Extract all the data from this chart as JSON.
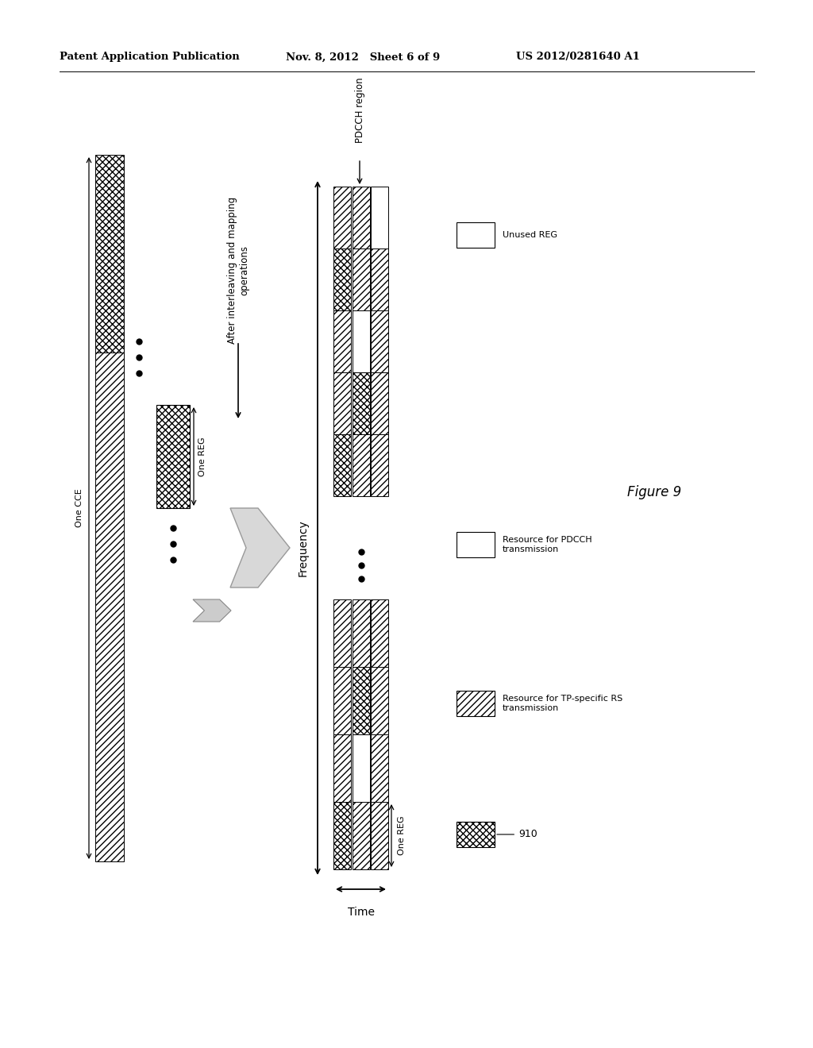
{
  "bg_color": "#ffffff",
  "header_left": "Patent Application Publication",
  "header_mid": "Nov. 8, 2012   Sheet 6 of 9",
  "header_right": "US 2012/0281640 A1",
  "fig_label": "Figure 9",
  "label_one_cce": "One CCE",
  "label_one_reg_left": "One REG",
  "label_one_reg_right": "One REG",
  "label_after": "After interleaving and mapping\noperations",
  "label_frequency": "Frequency",
  "label_time": "Time",
  "label_pdcch_region": "PDCCH region",
  "label_unused_reg": "Unused REG",
  "label_pdcch_resource": "Resource for PDCCH\ntransmission",
  "label_tp_resource": "Resource for TP-specific RS\ntransmission",
  "label_910": "910"
}
